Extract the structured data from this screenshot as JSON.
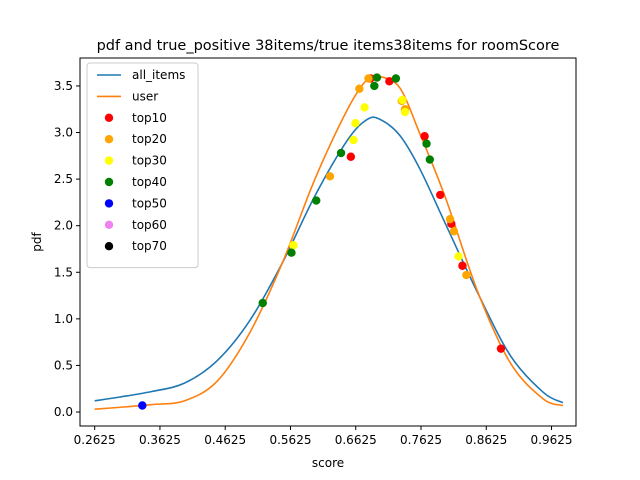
{
  "chart_data": {
    "type": "line",
    "title": "pdf and true_positive 38items/true items38items for roomScore",
    "xlabel": "score",
    "ylabel": "pdf",
    "xlim": [
      0.24,
      1.0
    ],
    "ylim": [
      -0.15,
      3.8
    ],
    "xticks": [
      0.2625,
      0.3625,
      0.4625,
      0.5625,
      0.6625,
      0.7625,
      0.8625,
      0.9625
    ],
    "xtick_labels": [
      "0.2625",
      "0.3625",
      "0.4625",
      "0.5625",
      "0.6625",
      "0.7625",
      "0.8625",
      "0.9625"
    ],
    "yticks": [
      0.0,
      0.5,
      1.0,
      1.5,
      2.0,
      2.5,
      3.0,
      3.5
    ],
    "ytick_labels": [
      "0.0",
      "0.5",
      "1.0",
      "1.5",
      "2.0",
      "2.5",
      "3.0",
      "3.5"
    ],
    "grid": false,
    "legend_position": "top-left",
    "series": [
      {
        "name": "all_items",
        "type": "line",
        "color": "#1f77b4",
        "x": [
          0.2625,
          0.3,
          0.35,
          0.4,
          0.45,
          0.5,
          0.55,
          0.6,
          0.65,
          0.68,
          0.7,
          0.73,
          0.76,
          0.8,
          0.85,
          0.9,
          0.95,
          0.98
        ],
        "y": [
          0.12,
          0.16,
          0.22,
          0.31,
          0.55,
          0.98,
          1.6,
          2.32,
          2.92,
          3.14,
          3.14,
          2.97,
          2.62,
          2.02,
          1.27,
          0.6,
          0.21,
          0.1
        ]
      },
      {
        "name": "user",
        "type": "line",
        "color": "#ff7f0e",
        "x": [
          0.2625,
          0.3,
          0.35,
          0.4,
          0.45,
          0.5,
          0.55,
          0.6,
          0.65,
          0.68,
          0.7,
          0.73,
          0.76,
          0.8,
          0.85,
          0.9,
          0.95,
          0.98
        ],
        "y": [
          0.03,
          0.05,
          0.08,
          0.12,
          0.33,
          0.85,
          1.6,
          2.5,
          3.25,
          3.57,
          3.6,
          3.48,
          3.0,
          2.3,
          1.28,
          0.52,
          0.14,
          0.07
        ]
      },
      {
        "name": "top10",
        "type": "scatter",
        "color": "#ff0000",
        "x": [
          0.655,
          0.685,
          0.714,
          0.768,
          0.792,
          0.809,
          0.826,
          0.885
        ],
        "y": [
          2.74,
          3.58,
          3.55,
          2.96,
          2.33,
          2.02,
          1.57,
          0.68
        ]
      },
      {
        "name": "top20",
        "type": "scatter",
        "color": "#ffa500",
        "x": [
          0.623,
          0.668,
          0.682,
          0.733,
          0.738,
          0.807,
          0.813,
          0.832
        ],
        "y": [
          2.53,
          3.47,
          3.58,
          3.34,
          3.25,
          2.07,
          1.94,
          1.47
        ]
      },
      {
        "name": "top30",
        "type": "scatter",
        "color": "#ffff00",
        "x": [
          0.567,
          0.659,
          0.662,
          0.676,
          0.734,
          0.738,
          0.82
        ],
        "y": [
          1.79,
          2.92,
          3.1,
          3.27,
          3.35,
          3.22,
          1.67
        ]
      },
      {
        "name": "top40",
        "type": "scatter",
        "color": "#008000",
        "x": [
          0.52,
          0.564,
          0.602,
          0.64,
          0.691,
          0.695,
          0.724,
          0.771,
          0.776
        ],
        "y": [
          1.17,
          1.71,
          2.27,
          2.78,
          3.5,
          3.59,
          3.58,
          2.88,
          2.71
        ]
      },
      {
        "name": "top50",
        "type": "scatter",
        "color": "#0000ff",
        "x": [
          0.3355
        ],
        "y": [
          0.07
        ]
      },
      {
        "name": "top60",
        "type": "scatter",
        "color": "#ee82ee",
        "x": [],
        "y": []
      },
      {
        "name": "top70",
        "type": "scatter",
        "color": "#000000",
        "x": [],
        "y": []
      }
    ]
  }
}
